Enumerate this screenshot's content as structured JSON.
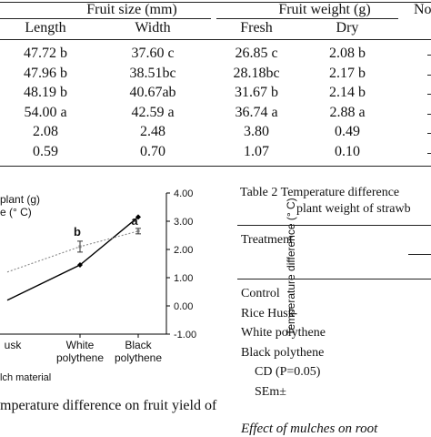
{
  "top_table": {
    "group_headers": {
      "fruit_size": "Fruit size (mm)",
      "fruit_weight": "Fruit weight (g)",
      "truncated": "No"
    },
    "columns": [
      "Length",
      "Width",
      "Fresh",
      "Dry"
    ],
    "rows": [
      [
        "47.72 b",
        "37.60 c",
        "26.85 c",
        "2.08 b"
      ],
      [
        "47.96 b",
        "38.51bc",
        "28.18bc",
        "2.17 b"
      ],
      [
        "48.19 b",
        "40.67ab",
        "31.67 b",
        "2.14 b"
      ],
      [
        "54.00 a",
        "42.59 a",
        "36.74 a",
        "2.88 a"
      ],
      [
        "2.08",
        "2.48",
        "3.80",
        "0.49"
      ],
      [
        "0.59",
        "0.70",
        "1.07",
        "0.10"
      ]
    ]
  },
  "figure": {
    "left_axis_partial": [
      "plant (g)",
      "e (° C)"
    ],
    "right_axis_label": "Temperature difference (° C)",
    "x_title_partial": "lch material",
    "caption_partial": "mperature difference on fruit yield of",
    "chart_data": {
      "type": "line",
      "categories": [
        "Rice Husk",
        "White polythene",
        "Black polythene"
      ],
      "category_labels": [
        [
          "usk"
        ],
        [
          "White",
          "polythene"
        ],
        [
          "Black",
          "polythene"
        ]
      ],
      "right_axis": {
        "ylim": [
          -1.0,
          4.0
        ],
        "ticks": [
          "4.00",
          "3.00",
          "2.00",
          "1.00",
          "0.00",
          "-1.00"
        ]
      },
      "series": [
        {
          "values": [
            0.2,
            1.45,
            3.15
          ],
          "style": "solid",
          "color": "#000000",
          "marker": "diamond"
        },
        {
          "values": [
            1.2,
            2.1,
            2.65
          ],
          "style": "dotted",
          "color": "#888888",
          "marker": "error-bar",
          "labels": [
            "",
            "b",
            "a"
          ]
        }
      ]
    }
  },
  "right_table": {
    "title_line1": "Table 2   Temperature difference",
    "title_line2": "plant weight of strawb",
    "header": "Treatment",
    "rows": [
      "Control",
      "Rice Husk",
      "White polythene",
      "Black polythene",
      "CD (P=0.05)",
      "SEm±"
    ],
    "footer_partial": "Effect of mulches on root"
  }
}
